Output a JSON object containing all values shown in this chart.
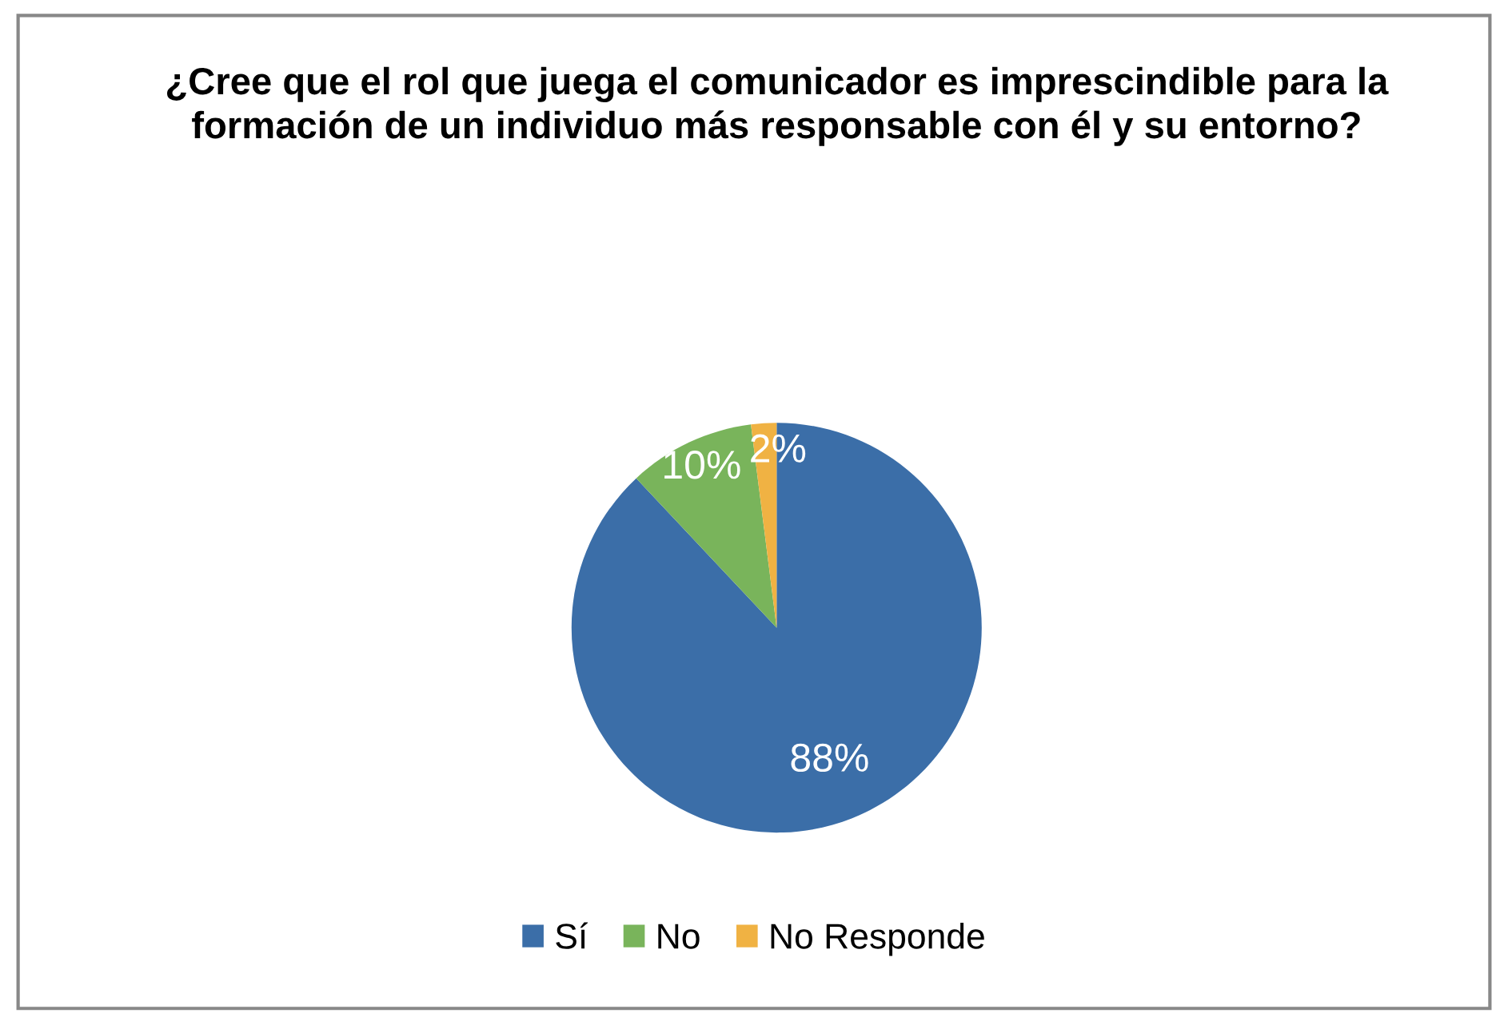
{
  "chart_data": {
    "type": "pie",
    "title": "¿Cree que el rol que juega el comunicador es imprescindible para la formación de un individuo más responsable con él y su entorno?",
    "categories": [
      "Sí",
      "No",
      "No Responde"
    ],
    "values": [
      88,
      10,
      2
    ],
    "colors": [
      "#3b6ea8",
      "#79b45b",
      "#f0b243"
    ],
    "value_labels": [
      "88%",
      "10%",
      "2%"
    ],
    "legend": "bottom"
  }
}
